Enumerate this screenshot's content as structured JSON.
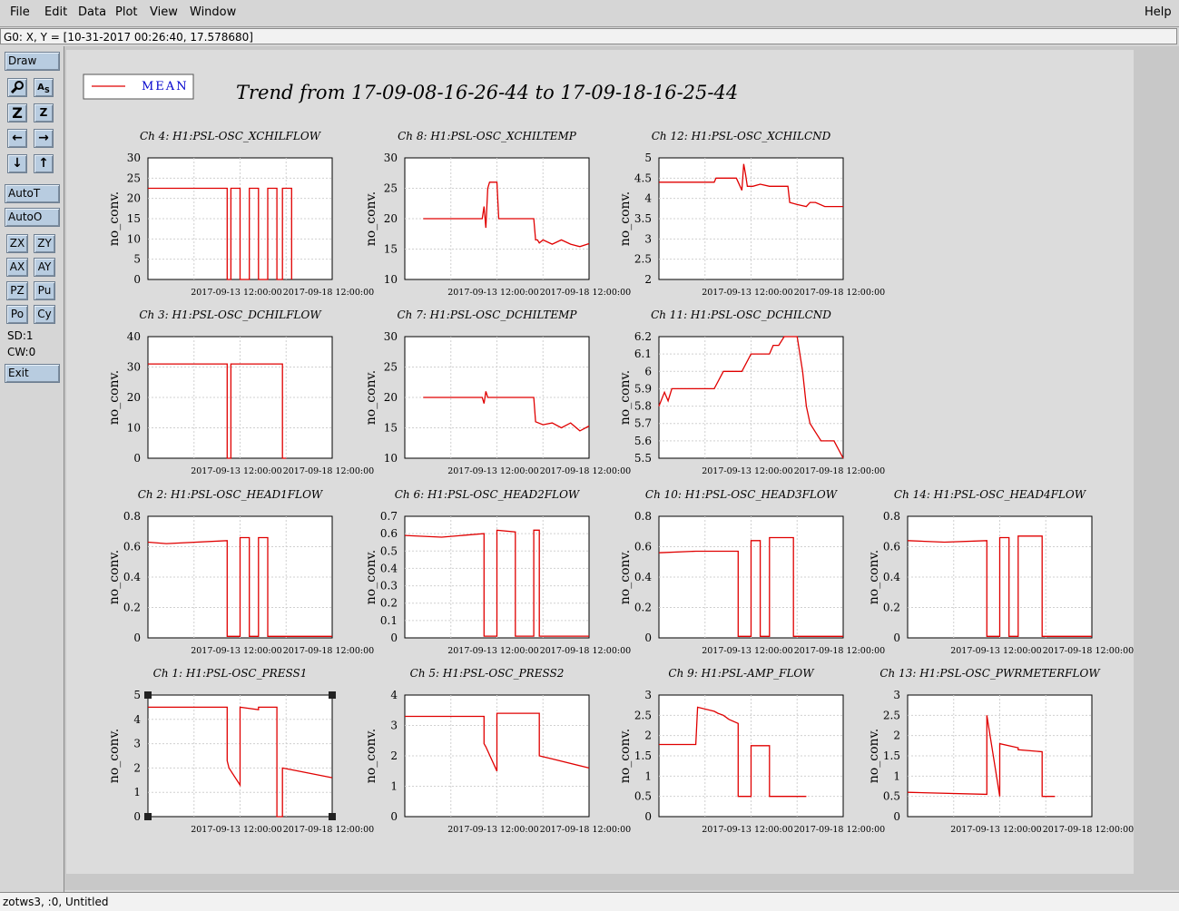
{
  "menubar": {
    "file": "File",
    "edit": "Edit",
    "data": "Data",
    "plot": "Plot",
    "view": "View",
    "window": "Window",
    "help": "Help"
  },
  "status_line": "G0: X, Y = [10-31-2017 00:26:40, 17.578680]",
  "toolbar": {
    "draw": "Draw",
    "icons": [
      "zoom-icon",
      "axis-scale-icon",
      "zoom-in-icon",
      "zoom-out-icon",
      "pan-left-icon",
      "pan-right-icon",
      "pan-down-icon",
      "pan-up-icon"
    ],
    "auto_t": "AutoT",
    "auto_o": "AutoO",
    "small_buttons": [
      "ZX",
      "ZY",
      "AX",
      "AY",
      "PZ",
      "Pu",
      "Po",
      "Cy"
    ],
    "sd": "SD:1",
    "cw": "CW:0",
    "exit": "Exit"
  },
  "footer": "zotws3, :0, Untitled",
  "legend": "MEAN",
  "main_title": "Trend from 17-09-08-16-26-44 to 17-09-18-16-25-44",
  "colors": {
    "series": "#e00000",
    "legend_text": "#0000cc"
  },
  "chart_data": [
    {
      "type": "line",
      "title": "Ch 4: H1:PSL-OSC_XCHILFLOW",
      "ylabel": "no_conv.",
      "ylim": [
        0,
        30
      ],
      "yticks": [
        "0",
        "5",
        "10",
        "15",
        "20",
        "25",
        "30"
      ],
      "xticks": [
        "2017-09-13 12:00:00",
        "2017-09-18 12:00:00"
      ],
      "series": [
        {
          "x": [
            0,
            0.43,
            0.43,
            0.45,
            0.45,
            0.5,
            0.5,
            0.55,
            0.55,
            0.6,
            0.6,
            0.65,
            0.65,
            0.7,
            0.7,
            0.73,
            0.73,
            0.78,
            0.78
          ],
          " y": [],
          "y": [
            22.5,
            22.5,
            0,
            0,
            22.5,
            22.5,
            0,
            0,
            22.5,
            22.5,
            0,
            0,
            22.5,
            22.5,
            0,
            0,
            22.5,
            22.5,
            0
          ]
        }
      ]
    },
    {
      "type": "line",
      "title": "Ch 8: H1:PSL-OSC_XCHILTEMP",
      "ylabel": "no_conv.",
      "ylim": [
        10,
        30
      ],
      "yticks": [
        "10",
        "15",
        "20",
        "25",
        "30"
      ],
      "xticks": [
        "2017-09-13 12:00:00",
        "2017-09-18 12:00:00"
      ],
      "series": [
        {
          "x": [
            0.1,
            0.42,
            0.43,
            0.44,
            0.45,
            0.46,
            0.47,
            0.5,
            0.51,
            0.52,
            0.6,
            0.61,
            0.7,
            0.71,
            0.72,
            0.73,
            0.75,
            0.8,
            0.85,
            0.9,
            0.95,
            1.0
          ],
          "y": [
            20,
            20,
            22,
            18.5,
            25,
            26,
            26,
            26,
            20,
            20,
            20,
            20,
            20,
            16.5,
            16.5,
            16,
            16.5,
            15.8,
            16.5,
            15.8,
            15.4,
            15.9
          ]
        }
      ]
    },
    {
      "type": "line",
      "title": "Ch 12: H1:PSL-OSC_XCHILCND",
      "ylabel": "no_conv.",
      "ylim": [
        2,
        5
      ],
      "yticks": [
        "2",
        "2.5",
        "3",
        "3.5",
        "4",
        "4.5",
        "5"
      ],
      "xticks": [
        "2017-09-13 12:00:00",
        "2017-09-18 12:00:00"
      ],
      "series": [
        {
          "x": [
            0,
            0.3,
            0.31,
            0.42,
            0.45,
            0.46,
            0.47,
            0.48,
            0.5,
            0.51,
            0.55,
            0.6,
            0.65,
            0.7,
            0.71,
            0.75,
            0.8,
            0.82,
            0.85,
            0.9,
            0.95,
            1.0
          ],
          "y": [
            4.4,
            4.4,
            4.5,
            4.5,
            4.2,
            4.85,
            4.6,
            4.3,
            4.3,
            4.3,
            4.35,
            4.3,
            4.3,
            4.3,
            3.9,
            3.85,
            3.8,
            3.9,
            3.9,
            3.8,
            3.8,
            3.8
          ]
        }
      ]
    },
    {
      "type": "line",
      "title": "Ch 3: H1:PSL-OSC_DCHILFLOW",
      "ylabel": "no_conv.",
      "ylim": [
        0,
        40
      ],
      "yticks": [
        "0",
        "10",
        "20",
        "30",
        "40"
      ],
      "xticks": [
        "2017-09-13 12:00:00",
        "2017-09-18 12:00:00"
      ],
      "series": [
        {
          "x": [
            0,
            0.43,
            0.43,
            0.45,
            0.45,
            0.73,
            0.73,
            0.75,
            0.75
          ],
          "y": [
            31,
            31,
            0,
            0,
            31,
            31,
            0,
            0,
            0
          ]
        }
      ]
    },
    {
      "type": "line",
      "title": "Ch 7: H1:PSL-OSC_DCHILTEMP",
      "ylabel": "no_conv.",
      "ylim": [
        10,
        30
      ],
      "yticks": [
        "10",
        "15",
        "20",
        "25",
        "30"
      ],
      "xticks": [
        "2017-09-13 12:00:00",
        "2017-09-18 12:00:00"
      ],
      "series": [
        {
          "x": [
            0.1,
            0.42,
            0.43,
            0.44,
            0.45,
            0.6,
            0.7,
            0.71,
            0.75,
            0.8,
            0.85,
            0.9,
            0.95,
            1.0
          ],
          "y": [
            20,
            20,
            19,
            21,
            20,
            20,
            20,
            16,
            15.5,
            15.8,
            15,
            15.8,
            14.5,
            15.3
          ]
        }
      ]
    },
    {
      "type": "line",
      "title": "Ch 11: H1:PSL-OSC_DCHILCND",
      "ylabel": "no_conv.",
      "ylim": [
        5.5,
        6.2
      ],
      "yticks": [
        "5.5",
        "5.6",
        "5.7",
        "5.8",
        "5.9",
        "6",
        "6.1",
        "6.2"
      ],
      "xticks": [
        "2017-09-13 12:00:00",
        "2017-09-18 12:00:00"
      ],
      "series": [
        {
          "x": [
            0,
            0.03,
            0.05,
            0.07,
            0.1,
            0.3,
            0.35,
            0.45,
            0.5,
            0.55,
            0.6,
            0.62,
            0.65,
            0.68,
            0.7,
            0.75,
            0.78,
            0.8,
            0.82,
            0.85,
            0.88,
            0.9,
            0.95,
            1.0
          ],
          "y": [
            5.8,
            5.88,
            5.83,
            5.9,
            5.9,
            5.9,
            6,
            6,
            6.1,
            6.1,
            6.1,
            6.15,
            6.15,
            6.2,
            6.2,
            6.2,
            6,
            5.8,
            5.7,
            5.65,
            5.6,
            5.6,
            5.6,
            5.5
          ]
        }
      ]
    },
    {
      "type": "line",
      "title": "Ch 2: H1:PSL-OSC_HEAD1FLOW",
      "ylabel": "no_conv.",
      "ylim": [
        0,
        0.8
      ],
      "yticks": [
        "0",
        "0.2",
        "0.4",
        "0.6",
        "0.8"
      ],
      "xticks": [
        "2017-09-13 12:00:00",
        "2017-09-18 12:00:00"
      ],
      "series": [
        {
          "x": [
            0,
            0.1,
            0.43,
            0.43,
            0.5,
            0.5,
            0.55,
            0.55,
            0.6,
            0.6,
            0.65,
            0.65,
            0.73,
            0.73,
            1.0
          ],
          "y": [
            0.63,
            0.62,
            0.64,
            0.01,
            0.01,
            0.66,
            0.66,
            0.01,
            0.01,
            0.66,
            0.66,
            0.01,
            0.01,
            0.01,
            0.01
          ]
        }
      ]
    },
    {
      "type": "line",
      "title": "Ch 6: H1:PSL-OSC_HEAD2FLOW",
      "ylabel": "no_conv.",
      "ylim": [
        0,
        0.7
      ],
      "yticks": [
        "0",
        "0.1",
        "0.2",
        "0.3",
        "0.4",
        "0.5",
        "0.6",
        "0.7"
      ],
      "xticks": [
        "2017-09-13 12:00:00",
        "2017-09-18 12:00:00"
      ],
      "series": [
        {
          "x": [
            0,
            0.2,
            0.43,
            0.43,
            0.5,
            0.5,
            0.6,
            0.6,
            0.7,
            0.7,
            0.73,
            0.73,
            1.0
          ],
          "y": [
            0.59,
            0.58,
            0.6,
            0.01,
            0.01,
            0.62,
            0.61,
            0.01,
            0.01,
            0.62,
            0.62,
            0.01,
            0.01
          ]
        }
      ]
    },
    {
      "type": "line",
      "title": "Ch 10: H1:PSL-OSC_HEAD3FLOW",
      "ylabel": "no_conv.",
      "ylim": [
        0,
        0.8
      ],
      "yticks": [
        "0",
        "0.2",
        "0.4",
        "0.6",
        "0.8"
      ],
      "xticks": [
        "2017-09-13 12:00:00",
        "2017-09-18 12:00:00"
      ],
      "series": [
        {
          "x": [
            0,
            0.2,
            0.43,
            0.43,
            0.5,
            0.5,
            0.55,
            0.55,
            0.6,
            0.6,
            0.73,
            0.73,
            1.0
          ],
          "y": [
            0.56,
            0.57,
            0.57,
            0.01,
            0.01,
            0.64,
            0.64,
            0.01,
            0.01,
            0.66,
            0.66,
            0.01,
            0.01
          ]
        }
      ]
    },
    {
      "type": "line",
      "title": "Ch 14: H1:PSL-OSC_HEAD4FLOW",
      "ylabel": "no_conv.",
      "ylim": [
        0,
        0.8
      ],
      "yticks": [
        "0",
        "0.2",
        "0.4",
        "0.6",
        "0.8"
      ],
      "xticks": [
        "2017-09-13 12:00:00",
        "2017-09-18 12:00:00"
      ],
      "series": [
        {
          "x": [
            0,
            0.2,
            0.43,
            0.43,
            0.5,
            0.5,
            0.55,
            0.55,
            0.6,
            0.6,
            0.73,
            0.73,
            1.0
          ],
          "y": [
            0.64,
            0.63,
            0.64,
            0.01,
            0.01,
            0.66,
            0.66,
            0.01,
            0.01,
            0.67,
            0.67,
            0.01,
            0.01
          ]
        }
      ]
    },
    {
      "type": "line",
      "title": "Ch 1: H1:PSL-OSC_PRESS1",
      "ylabel": "no_conv.",
      "ylim": [
        0,
        5
      ],
      "yticks": [
        "0",
        "1",
        "2",
        "3",
        "4",
        "5"
      ],
      "xticks": [
        "2017-09-13 12:00:00",
        "2017-09-18 12:00:00"
      ],
      "series": [
        {
          "x": [
            0,
            0.43,
            0.43,
            0.44,
            0.5,
            0.5,
            0.6,
            0.6,
            0.7,
            0.7,
            0.73,
            0.73,
            0.8,
            1.0
          ],
          "y": [
            4.5,
            4.5,
            2.3,
            2,
            1.3,
            4.5,
            4.4,
            4.5,
            4.5,
            0,
            0,
            2,
            1.9,
            1.6
          ]
        }
      ]
    },
    {
      "type": "line",
      "title": "Ch 5: H1:PSL-OSC_PRESS2",
      "ylabel": "no_conv.",
      "ylim": [
        0,
        4
      ],
      "yticks": [
        "0",
        "1",
        "2",
        "3",
        "4"
      ],
      "xticks": [
        "2017-09-13 12:00:00",
        "2017-09-18 12:00:00"
      ],
      "series": [
        {
          "x": [
            0,
            0.43,
            0.43,
            0.44,
            0.5,
            0.5,
            0.6,
            0.6,
            0.73,
            0.73,
            0.8,
            1.0
          ],
          "y": [
            3.3,
            3.3,
            2.4,
            2.3,
            1.5,
            3.4,
            3.4,
            3.4,
            3.4,
            2,
            1.9,
            1.6
          ]
        }
      ]
    },
    {
      "type": "line",
      "title": "Ch 9: H1:PSL-AMP_FLOW",
      "ylabel": "no_conv.",
      "ylim": [
        0,
        3
      ],
      "yticks": [
        "0",
        "0.5",
        "1",
        "1.5",
        "2",
        "2.5",
        "3"
      ],
      "xticks": [
        "2017-09-13 12:00:00",
        "2017-09-18 12:00:00"
      ],
      "series": [
        {
          "x": [
            0,
            0.2,
            0.21,
            0.3,
            0.32,
            0.35,
            0.38,
            0.43,
            0.43,
            0.5,
            0.5,
            0.6,
            0.6,
            0.73,
            0.73,
            0.8
          ],
          "y": [
            1.78,
            1.78,
            2.7,
            2.6,
            2.55,
            2.5,
            2.4,
            2.3,
            0.5,
            0.5,
            1.75,
            1.75,
            0.5,
            0.5,
            0.5,
            0.5
          ]
        }
      ]
    },
    {
      "type": "line",
      "title": "Ch 13: H1:PSL-OSC_PWRMETERFLOW",
      "ylabel": "no_conv.",
      "ylim": [
        0,
        3
      ],
      "yticks": [
        "0",
        "0.5",
        "1",
        "1.5",
        "2",
        "2.5",
        "3"
      ],
      "xticks": [
        "2017-09-13 12:00:00",
        "2017-09-18 12:00:00"
      ],
      "series": [
        {
          "x": [
            0,
            0.43,
            0.43,
            0.5,
            0.5,
            0.6,
            0.6,
            0.73,
            0.73,
            0.8
          ],
          "y": [
            0.6,
            0.55,
            2.5,
            0.5,
            1.8,
            1.7,
            1.65,
            1.6,
            0.5,
            0.5
          ]
        }
      ]
    }
  ]
}
